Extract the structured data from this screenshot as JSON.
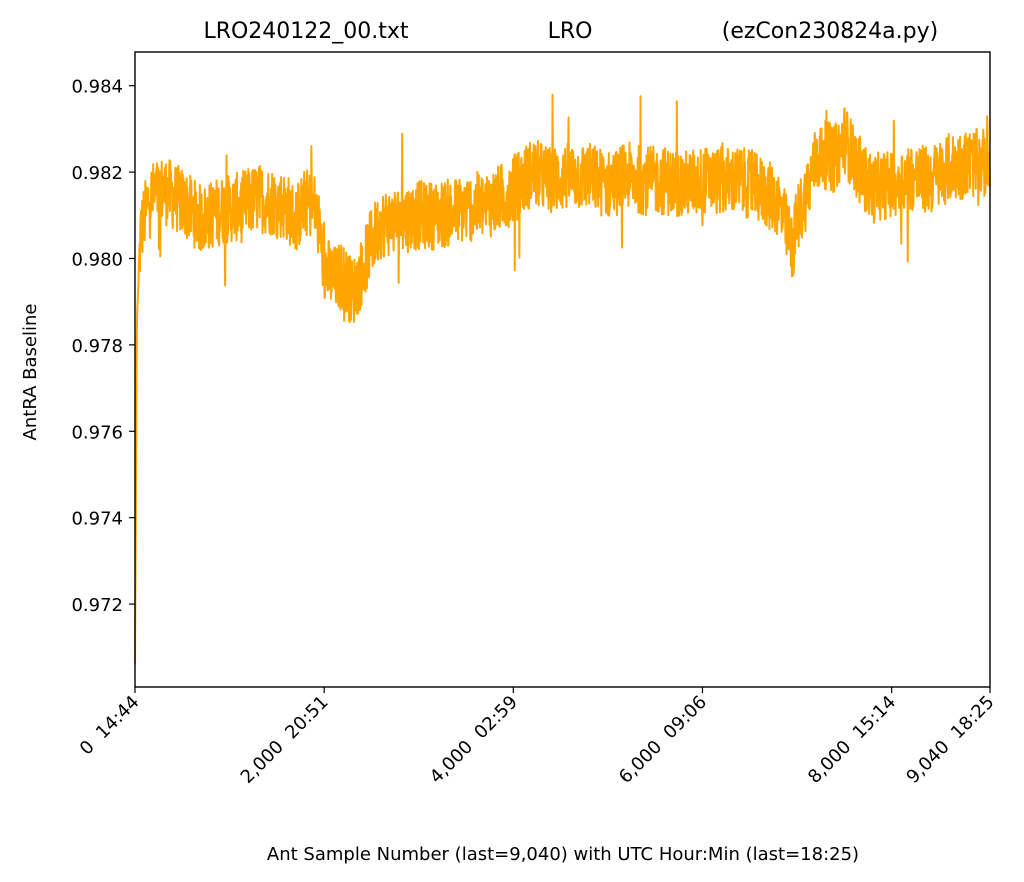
{
  "chart_data": {
    "type": "line",
    "title_parts": [
      "LRO240122_00.txt",
      "LRO",
      "(ezCon230824a.py)"
    ],
    "xlabel": "Ant Sample Number (last=9,040) with UTC Hour:Min (last=18:25)",
    "ylabel": "AntRA Baseline",
    "xlim": [
      0,
      9040
    ],
    "ylim": [
      0.97008,
      0.98478
    ],
    "x_ticks": [
      {
        "value": 0,
        "label": "0  14:44"
      },
      {
        "value": 2000,
        "label": "2,000  20:51"
      },
      {
        "value": 4000,
        "label": "4,000  02:59"
      },
      {
        "value": 6000,
        "label": "6,000  09:06"
      },
      {
        "value": 8000,
        "label": "8,000  15:14"
      },
      {
        "value": 9040,
        "label": "9,040  18:25"
      }
    ],
    "y_ticks": [
      {
        "value": 0.972,
        "label": "0.972"
      },
      {
        "value": 0.974,
        "label": "0.974"
      },
      {
        "value": 0.976,
        "label": "0.976"
      },
      {
        "value": 0.978,
        "label": "0.978"
      },
      {
        "value": 0.98,
        "label": "0.980"
      },
      {
        "value": 0.982,
        "label": "0.982"
      },
      {
        "value": 0.984,
        "label": "0.984"
      }
    ],
    "grid": false,
    "series": [
      {
        "color": "#ffa500",
        "x": [
          0,
          20,
          60,
          150,
          300,
          500,
          700,
          900,
          1100,
          1300,
          1500,
          1600,
          1700,
          1800,
          1900,
          1950,
          2000,
          2100,
          2200,
          2300,
          2400,
          2500,
          2600,
          2800,
          3000,
          3200,
          3400,
          3600,
          3800,
          4000,
          4200,
          4400,
          4600,
          4800,
          5000,
          5200,
          5400,
          5600,
          5800,
          6000,
          6200,
          6400,
          6600,
          6800,
          6900,
          6950,
          7000,
          7100,
          7200,
          7300,
          7400,
          7500,
          7600,
          7700,
          7800,
          7900,
          8000,
          8200,
          8400,
          8600,
          8800,
          9000,
          9040
        ],
        "y": [
          0.9706,
          0.9786,
          0.9806,
          0.9814,
          0.9816,
          0.9813,
          0.9809,
          0.9811,
          0.9812,
          0.9814,
          0.9813,
          0.9812,
          0.9809,
          0.9813,
          0.9812,
          0.9806,
          0.9798,
          0.9795,
          0.9796,
          0.9792,
          0.9797,
          0.9804,
          0.9808,
          0.9809,
          0.981,
          0.981,
          0.9811,
          0.9812,
          0.9813,
          0.9816,
          0.982,
          0.9818,
          0.9819,
          0.9819,
          0.9817,
          0.9819,
          0.9818,
          0.9818,
          0.9817,
          0.9818,
          0.9818,
          0.9818,
          0.9816,
          0.9813,
          0.9806,
          0.9802,
          0.9809,
          0.9815,
          0.9823,
          0.9824,
          0.9823,
          0.9828,
          0.9823,
          0.9819,
          0.9816,
          0.9817,
          0.9817,
          0.9819,
          0.9818,
          0.9821,
          0.9822,
          0.9822,
          0.9824
        ]
      }
    ]
  }
}
